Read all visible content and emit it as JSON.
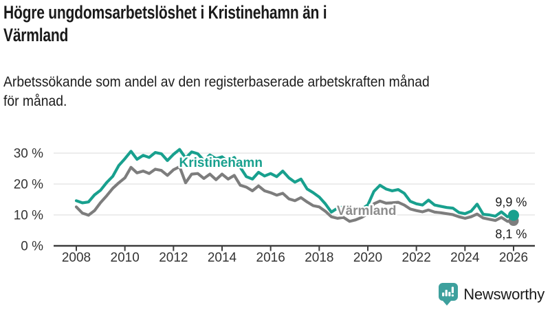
{
  "chart_data": {
    "type": "line",
    "title": "Högre ungdomsarbetslöshet i Kristinehamn än i Värmland",
    "title_lines": [
      "Högre ungdomsarbetslöshet i Kristinehamn än i",
      "Värmland"
    ],
    "subtitle": "Arbetssökande som andel av den registerbaserade arbetskraften månad för månad.",
    "subtitle_lines": [
      "Arbetssökande som andel av den registerbaserade arbetskraften månad",
      "för månad."
    ],
    "unit": "%",
    "xlim": [
      2008,
      2026.8
    ],
    "ylim": [
      0,
      33
    ],
    "grid": "horizontal",
    "grid_color": "#e2e2e2",
    "axis_color": "#3c3c3c",
    "tick_label_color": "#333333",
    "x_ticks": [
      {
        "year": 2008,
        "label": "2008"
      },
      {
        "year": 2010,
        "label": "2010"
      },
      {
        "year": 2012,
        "label": "2012"
      },
      {
        "year": 2014,
        "label": "2014"
      },
      {
        "year": 2016,
        "label": "2016"
      },
      {
        "year": 2018,
        "label": "2018"
      },
      {
        "year": 2020,
        "label": "2020"
      },
      {
        "year": 2022,
        "label": "2022"
      },
      {
        "year": 2024,
        "label": "2024"
      },
      {
        "year": 2026,
        "label": "2026"
      }
    ],
    "y_ticks": [
      {
        "value": 0,
        "label": "0 %"
      },
      {
        "value": 10,
        "label": "10 %"
      },
      {
        "value": 20,
        "label": "20 %"
      },
      {
        "value": 30,
        "label": "30 %"
      }
    ],
    "x": [
      2008,
      2008.25,
      2008.5,
      2008.75,
      2009,
      2009.25,
      2009.5,
      2009.75,
      2010,
      2010.25,
      2010.5,
      2010.75,
      2011,
      2011.25,
      2011.5,
      2011.75,
      2012,
      2012.25,
      2012.5,
      2012.75,
      2013,
      2013.25,
      2013.5,
      2013.75,
      2014,
      2014.25,
      2014.5,
      2014.75,
      2015,
      2015.25,
      2015.5,
      2015.75,
      2016,
      2016.25,
      2016.5,
      2016.75,
      2017,
      2017.25,
      2017.5,
      2017.75,
      2018,
      2018.25,
      2018.5,
      2018.75,
      2019,
      2019.25,
      2019.5,
      2019.75,
      2020,
      2020.25,
      2020.5,
      2020.75,
      2021,
      2021.25,
      2021.5,
      2021.75,
      2022,
      2022.25,
      2022.5,
      2022.75,
      2023,
      2023.25,
      2023.5,
      2023.75,
      2024,
      2024.25,
      2024.5,
      2024.75,
      2025,
      2025.25,
      2025.5,
      2025.75,
      2026
    ],
    "series": [
      {
        "name": "Kristinehamn",
        "color": "#18a08e",
        "line_width": 4.2,
        "marker_radius": 8,
        "end_value": 9.9,
        "end_label": "9,9 %",
        "values": [
          14.6,
          13.9,
          14.2,
          16.5,
          18.0,
          20.5,
          22.5,
          26.0,
          28.2,
          30.6,
          28.0,
          29.3,
          28.6,
          30.2,
          29.8,
          27.6,
          29.6,
          31.2,
          28.4,
          30.4,
          29.8,
          27.6,
          29.4,
          28.2,
          28.8,
          27.2,
          28.6,
          25.4,
          22.4,
          21.6,
          23.8,
          22.6,
          23.4,
          22.4,
          24.2,
          22.0,
          20.6,
          21.6,
          18.4,
          17.2,
          15.8,
          13.6,
          10.9,
          12.2,
          12.6,
          11.4,
          10.8,
          12.0,
          13.2,
          17.6,
          19.6,
          18.4,
          17.8,
          18.2,
          17.0,
          14.4,
          13.6,
          13.2,
          14.8,
          13.2,
          12.8,
          12.4,
          12.2,
          10.8,
          10.4,
          11.2,
          13.5,
          10.2,
          10.0,
          9.6,
          11.0,
          9.4,
          9.9
        ]
      },
      {
        "name": "Värmland",
        "color": "#7d7d7d",
        "line_width": 4.2,
        "marker_radius": 7.5,
        "end_value": 8.1,
        "end_label": "8,1 %",
        "values": [
          12.6,
          10.6,
          9.9,
          11.4,
          14.0,
          16.2,
          18.6,
          20.4,
          22.0,
          25.4,
          23.6,
          24.2,
          23.4,
          24.8,
          24.4,
          22.8,
          24.6,
          25.6,
          20.4,
          23.2,
          23.4,
          21.8,
          23.2,
          21.4,
          23.2,
          21.6,
          22.8,
          19.6,
          19.0,
          17.8,
          19.4,
          17.8,
          17.2,
          16.4,
          17.0,
          15.2,
          14.6,
          15.6,
          14.2,
          13.0,
          12.6,
          11.2,
          9.4,
          8.9,
          9.2,
          7.9,
          8.4,
          9.2,
          10.4,
          13.6,
          14.5,
          13.8,
          13.9,
          14.1,
          13.2,
          11.9,
          11.4,
          11.0,
          11.6,
          10.9,
          10.7,
          10.4,
          10.1,
          9.4,
          8.9,
          9.4,
          10.3,
          9.0,
          8.6,
          8.2,
          9.2,
          7.9,
          8.1
        ]
      }
    ],
    "annotations": [
      {
        "text": "Kristinehamn",
        "x": 2013.95,
        "y": 25.6,
        "color": "#18a08e",
        "size": 19,
        "weight": "bold",
        "anchor": "middle",
        "halo": true
      },
      {
        "text": "Värmland",
        "x": 2019.95,
        "y": 10.0,
        "color": "#8d8d8d",
        "size": 19,
        "weight": "bold",
        "anchor": "middle",
        "halo": true
      },
      {
        "text": "9,9 %",
        "x": 2026.55,
        "y": 12.8,
        "color": "#1a1a1a",
        "size": 18,
        "weight": "normal",
        "anchor": "end",
        "halo": false
      },
      {
        "text": "8,1 %",
        "x": 2026.55,
        "y": 2.4,
        "color": "#1a1a1a",
        "size": 18,
        "weight": "normal",
        "anchor": "end",
        "halo": false
      }
    ]
  },
  "brand": {
    "name": "Newsworthy",
    "color": "#3da09d"
  }
}
